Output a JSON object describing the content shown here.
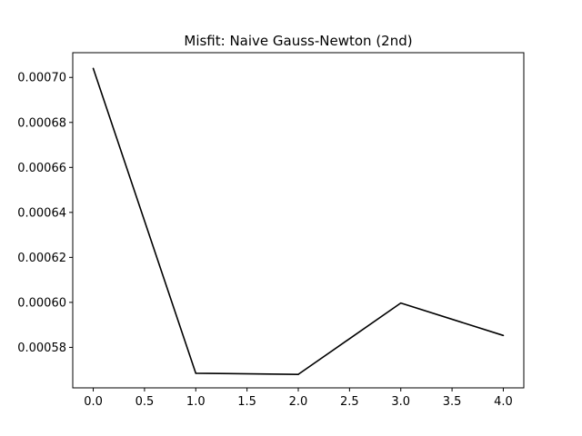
{
  "chart_data": {
    "type": "line",
    "title": "Misfit: Naive Gauss-Newton (2nd)",
    "xlabel": "",
    "ylabel": "",
    "x": [
      0,
      1,
      2,
      3,
      4
    ],
    "series": [
      {
        "values": [
          0.000704,
          0.0005685,
          0.000568,
          0.0005997,
          0.0005853
        ],
        "color": "#000000"
      }
    ],
    "xlim": [
      -0.2,
      4.2
    ],
    "ylim": [
      0.000562,
      0.000711
    ],
    "xticks": [
      0.0,
      0.5,
      1.0,
      1.5,
      2.0,
      2.5,
      3.0,
      3.5,
      4.0
    ],
    "xtick_labels": [
      "0.0",
      "0.5",
      "1.0",
      "1.5",
      "2.0",
      "2.5",
      "3.0",
      "3.5",
      "4.0"
    ],
    "yticks": [
      0.00058,
      0.0006,
      0.00062,
      0.00064,
      0.00066,
      0.00068,
      0.0007
    ],
    "ytick_labels": [
      "0.00058",
      "0.00060",
      "0.00062",
      "0.00064",
      "0.00066",
      "0.00068",
      "0.00070"
    ],
    "grid": false,
    "legend": false
  }
}
